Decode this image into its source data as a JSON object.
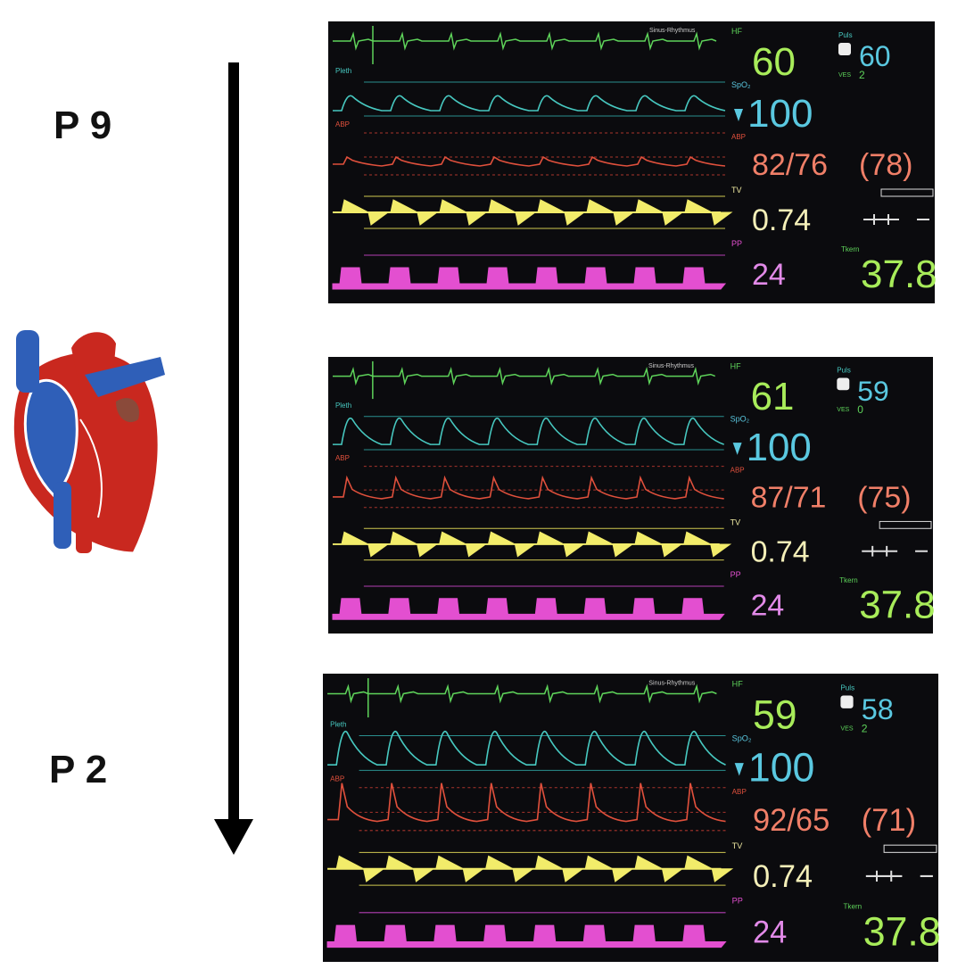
{
  "labels": {
    "top": "P 9",
    "bottom": "P 2"
  },
  "monitors": [
    {
      "rhythm": "Sinus-Rhythmus",
      "hr_label": "HF",
      "hr": "60",
      "pulse_label": "Puls",
      "pulse": "60",
      "ves_label": "VES",
      "ves": "2",
      "pleth_label": "Pleth",
      "spo2_label": "SpO₂",
      "spo2": "100",
      "abp_label": "ABP",
      "abp": "82/76",
      "abp_mean": "(78)",
      "tv_label": "TV",
      "tv": "0.74",
      "pp_label": "PP",
      "pp": "24",
      "temp_label": "Tkern",
      "temp": "37.8"
    },
    {
      "rhythm": "Sinus-Rhythmus",
      "hr_label": "HF",
      "hr": "61",
      "pulse_label": "Puls",
      "pulse": "59",
      "ves_label": "VES",
      "ves": "0",
      "pleth_label": "Pleth",
      "spo2_label": "SpO₂",
      "spo2": "100",
      "abp_label": "ABP",
      "abp": "87/71",
      "abp_mean": "(75)",
      "tv_label": "TV",
      "tv": "0.74",
      "pp_label": "PP",
      "pp": "24",
      "temp_label": "Tkern",
      "temp": "37.8"
    },
    {
      "rhythm": "Sinus-Rhythmus",
      "hr_label": "HF",
      "hr": "59",
      "pulse_label": "Puls",
      "pulse": "58",
      "ves_label": "VES",
      "ves": "2",
      "pleth_label": "Pleth",
      "spo2_label": "SpO₂",
      "spo2": "100",
      "abp_label": "ABP",
      "abp": "92/65",
      "abp_mean": "(71)",
      "tv_label": "TV",
      "tv": "0.74",
      "pp_label": "PP",
      "pp": "24",
      "temp_label": "Tkern",
      "temp": "37.8"
    }
  ]
}
